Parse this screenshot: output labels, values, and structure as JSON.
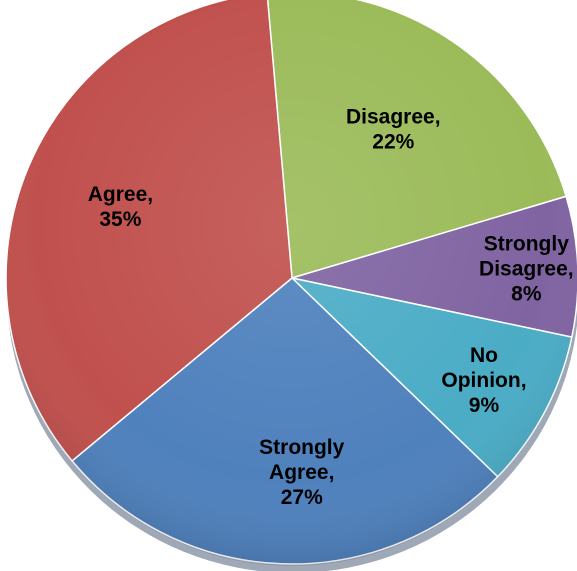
{
  "chart_data": {
    "type": "pie",
    "title": "",
    "start_angle_deg": -5,
    "slices": [
      {
        "label": "Disagree",
        "value": 22,
        "color": "#9BBB59"
      },
      {
        "label": "Strongly Disagree",
        "value": 8,
        "color": "#8064A2"
      },
      {
        "label": "No Opinion",
        "value": 9,
        "color": "#4BACC6"
      },
      {
        "label": "Strongly Agree",
        "value": 27,
        "color": "#4F81BD"
      },
      {
        "label": "Agree",
        "value": 35,
        "color": "#C0504D"
      }
    ],
    "data_labels": [
      {
        "lines": [
          "Disagree,",
          "22%"
        ]
      },
      {
        "lines": [
          "Strongly",
          "Disagree,",
          "8%"
        ]
      },
      {
        "lines": [
          "No",
          "Opinion,",
          "9%"
        ]
      },
      {
        "lines": [
          "Strongly",
          "Agree,",
          "27%"
        ]
      },
      {
        "lines": [
          "Agree,",
          "35%"
        ]
      }
    ]
  }
}
